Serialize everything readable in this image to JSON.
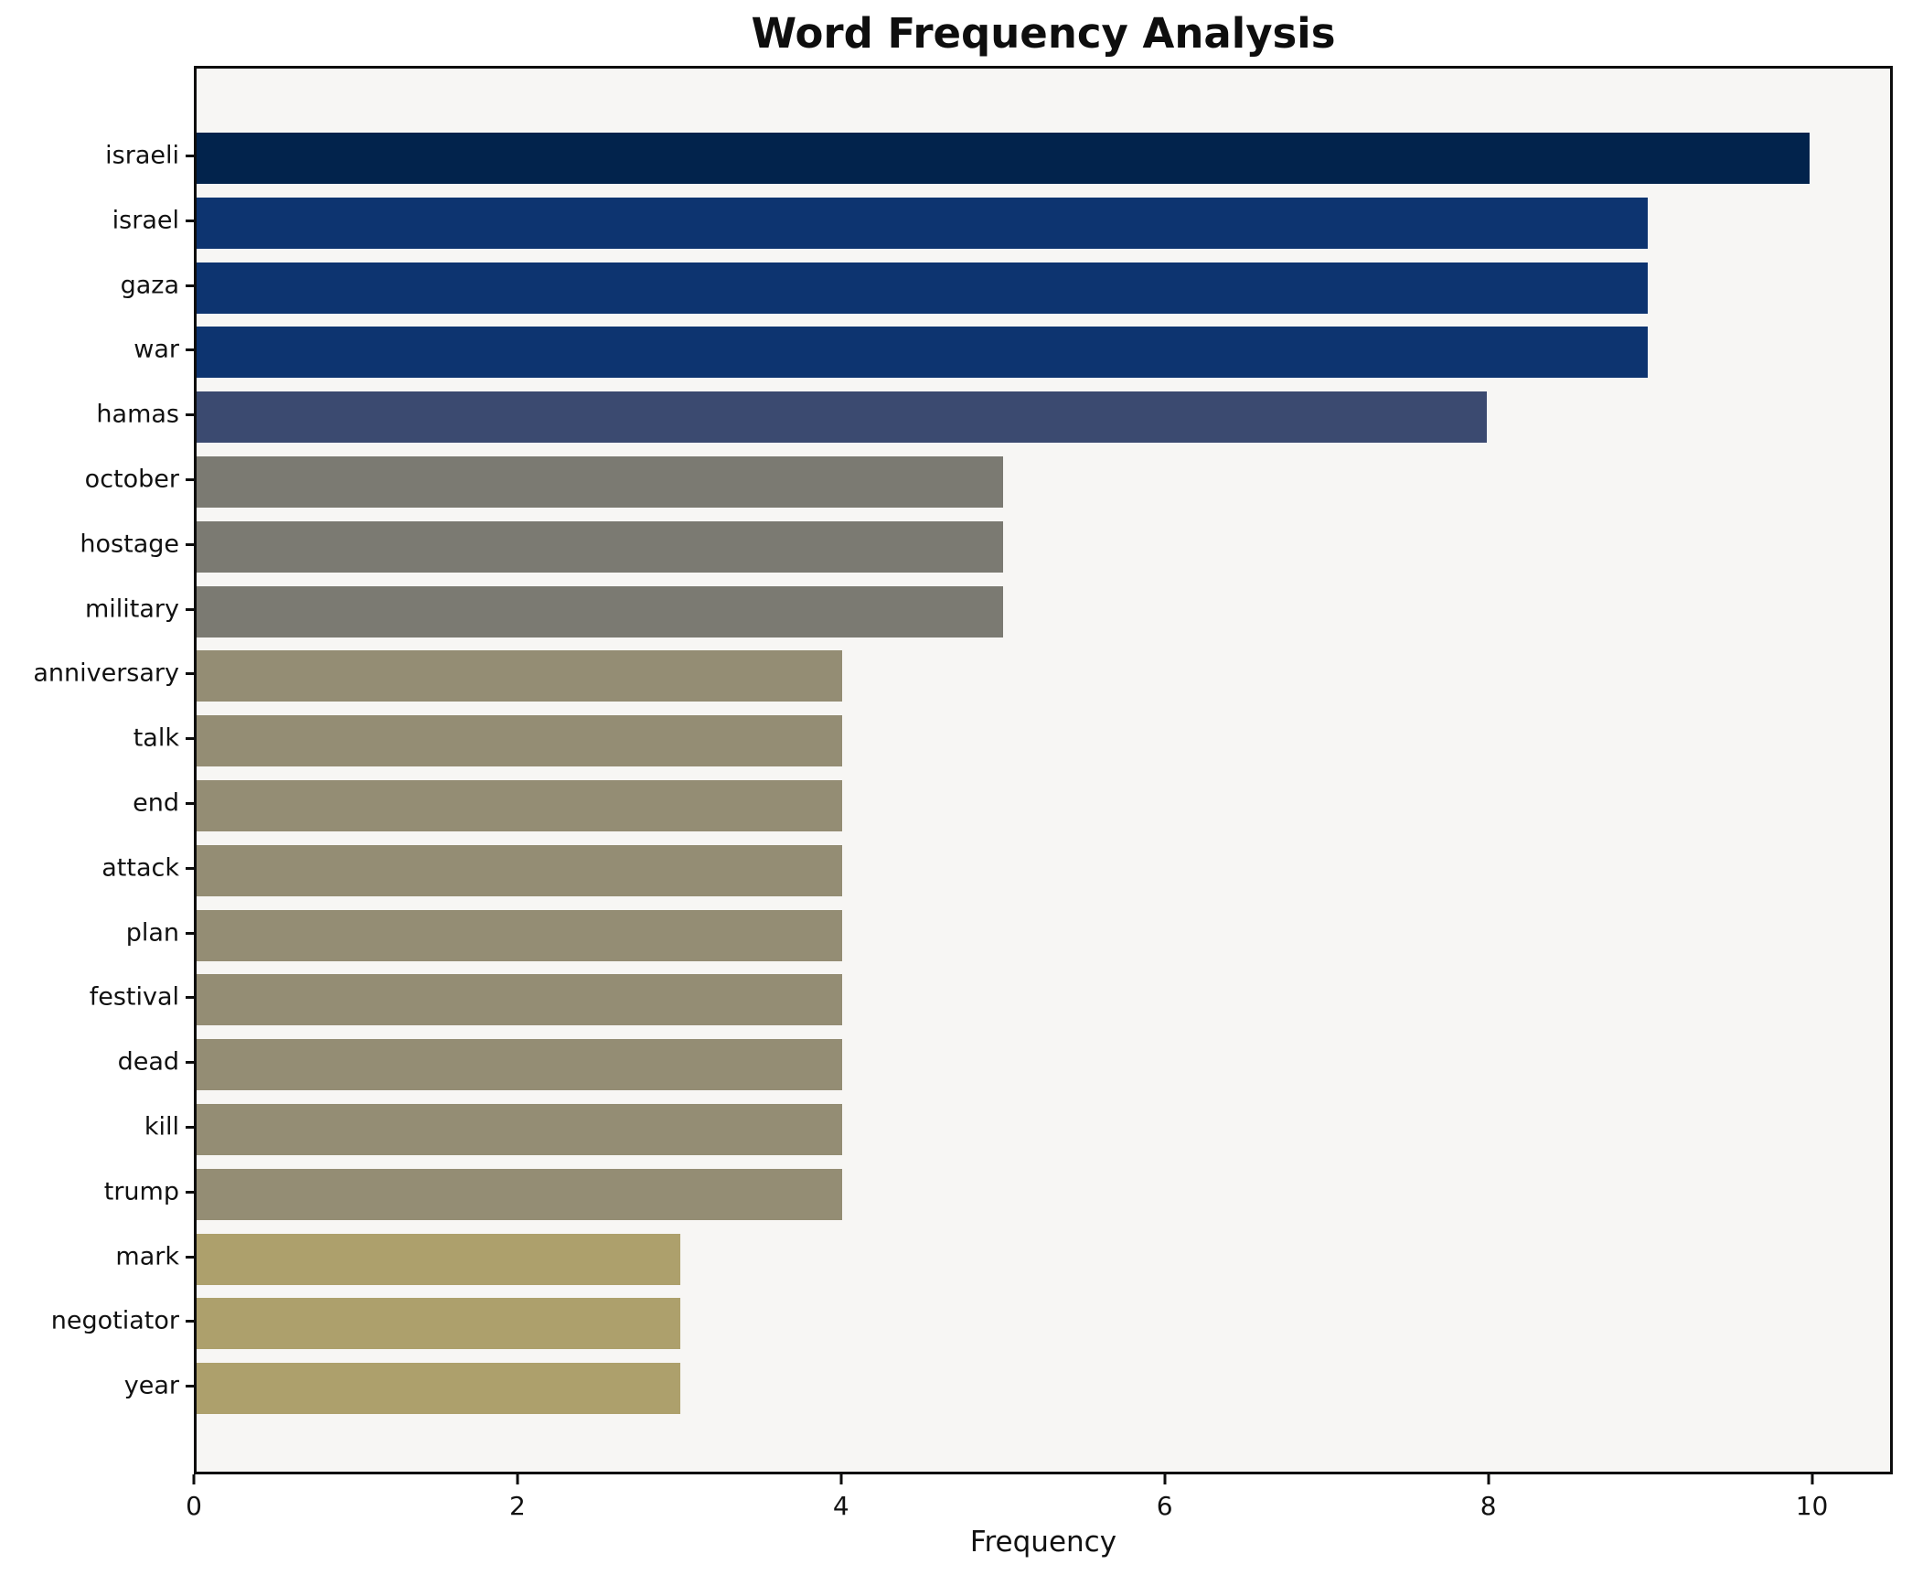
{
  "title": "Word Frequency Analysis",
  "xlabel": "Frequency",
  "chart_data": {
    "type": "bar",
    "orientation": "horizontal",
    "title": "Word Frequency Analysis",
    "xlabel": "Frequency",
    "ylabel": "",
    "categories": [
      "israeli",
      "israel",
      "gaza",
      "war",
      "hamas",
      "october",
      "hostage",
      "military",
      "anniversary",
      "talk",
      "end",
      "attack",
      "plan",
      "festival",
      "dead",
      "kill",
      "trump",
      "mark",
      "negotiator",
      "year"
    ],
    "values": [
      10,
      9,
      9,
      9,
      8,
      5,
      5,
      5,
      4,
      4,
      4,
      4,
      4,
      4,
      4,
      4,
      4,
      3,
      3,
      3
    ],
    "bar_colors": [
      "#02234c",
      "#0d3470",
      "#0d3470",
      "#0d3470",
      "#3b4a70",
      "#7b7a72",
      "#7b7a72",
      "#7b7a72",
      "#948d74",
      "#948d74",
      "#948d74",
      "#948d74",
      "#948d74",
      "#948d74",
      "#948d74",
      "#948d74",
      "#948d74",
      "#ada06c",
      "#ada06c",
      "#ada06c"
    ],
    "xlim": [
      0,
      10.5
    ],
    "x_ticks": [
      0,
      2,
      4,
      6,
      8,
      10
    ],
    "grid": false,
    "legend": null,
    "plot_background": "#f7f6f4",
    "figure_background": "#ffffff",
    "spine_color": "#0d0d0d"
  }
}
